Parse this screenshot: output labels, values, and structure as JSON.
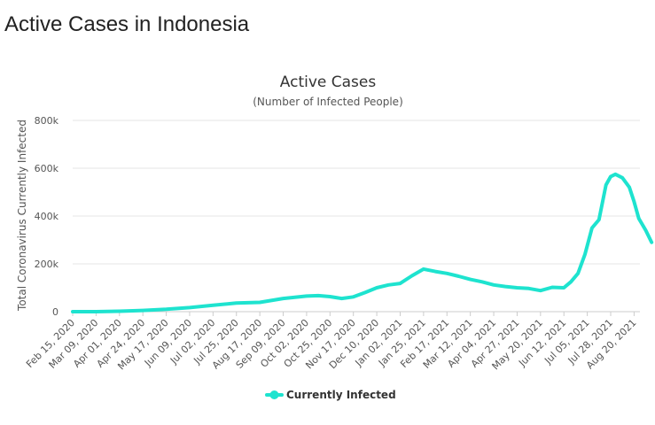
{
  "page": {
    "heading": "Active Cases in Indonesia"
  },
  "chart_data": {
    "type": "line",
    "title": "Active Cases",
    "subtitle": "(Number of Infected People)",
    "xlabel": "",
    "ylabel": "Total Coronavirus Currently Infected",
    "ylim": [
      0,
      800000
    ],
    "yticks": [
      {
        "value": 0,
        "label": "0"
      },
      {
        "value": 200000,
        "label": "200k"
      },
      {
        "value": 400000,
        "label": "400k"
      },
      {
        "value": 600000,
        "label": "600k"
      },
      {
        "value": 800000,
        "label": "800k"
      }
    ],
    "grid": true,
    "legend": "bottom-center",
    "categories": [
      "Feb 15, 2020",
      "Mar 09, 2020",
      "Apr 01, 2020",
      "Apr 24, 2020",
      "May 17, 2020",
      "Jun 09, 2020",
      "Jul 02, 2020",
      "Jul 25, 2020",
      "Aug 17, 2020",
      "Sep 09, 2020",
      "Oct 02, 2020",
      "Oct 25, 2020",
      "Nov 17, 2020",
      "Dec 10, 2020",
      "Jan 02, 2021",
      "Jan 25, 2021",
      "Feb 17, 2021",
      "Mar 12, 2021",
      "Apr 04, 2021",
      "Apr 27, 2021",
      "May 20, 2021",
      "Jun 12, 2021",
      "Jul 05, 2021",
      "Jul 28, 2021",
      "Aug 20, 2021"
    ],
    "series": [
      {
        "name": "Currently Infected",
        "color": "#1ee3cf",
        "x": [
          0,
          1,
          2,
          3,
          4,
          5,
          6,
          7,
          8,
          9,
          10,
          10.5,
          11,
          11.5,
          12,
          12.5,
          13,
          13.5,
          14,
          14.5,
          15,
          15.5,
          16,
          16.5,
          17,
          17.5,
          18,
          18.5,
          19,
          19.5,
          20,
          20.5,
          21,
          21.3,
          21.6,
          21.9,
          22.2,
          22.5,
          22.8,
          23,
          23.2,
          23.5,
          23.8,
          24,
          24.2,
          24.5,
          24.75
        ],
        "values": [
          0,
          100,
          2000,
          5000,
          10000,
          17000,
          27000,
          36000,
          39000,
          55000,
          65000,
          67000,
          63000,
          55000,
          62000,
          80000,
          100000,
          112000,
          118000,
          150000,
          178000,
          168000,
          160000,
          148000,
          135000,
          125000,
          112000,
          105000,
          100000,
          97000,
          88000,
          102000,
          100000,
          125000,
          160000,
          240000,
          350000,
          385000,
          530000,
          565000,
          575000,
          560000,
          520000,
          460000,
          390000,
          340000,
          290000
        ]
      }
    ]
  }
}
